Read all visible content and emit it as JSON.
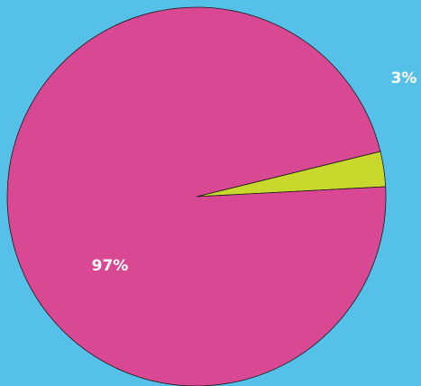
{
  "background_color": "#55c1e9",
  "chart_data": {
    "type": "pie",
    "title": "",
    "legend": "none",
    "start_angle_deg": 3,
    "slices": [
      {
        "value": 3,
        "label": "3%",
        "color": "#c8d82d"
      },
      {
        "value": 97,
        "label": "97%",
        "color": "#d94893"
      }
    ]
  }
}
